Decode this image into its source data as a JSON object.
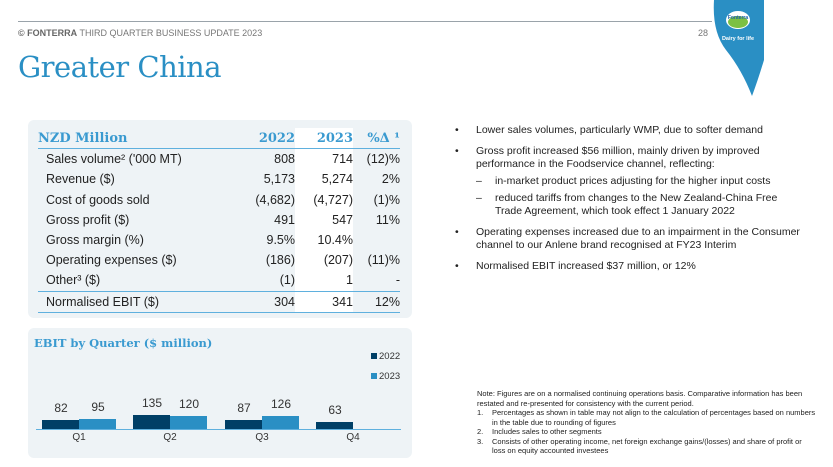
{
  "header": {
    "brand": "© FONTERRA",
    "doc_title": "THIRD QUARTER BUSINESS UPDATE 2023",
    "page_number": "28"
  },
  "logo": {
    "brand": "Fonterra",
    "tagline": "Dairy for life"
  },
  "page_title": "Greater China",
  "table": {
    "headers": [
      "NZD Million",
      "2022",
      "2023",
      "%Δ ¹"
    ],
    "rows": [
      {
        "label": "Sales volume² ('000 MT)",
        "y2022": "808",
        "y2023": "714",
        "pct": "(12)%"
      },
      {
        "label": "Revenue ($)",
        "y2022": "5,173",
        "y2023": "5,274",
        "pct": "2%"
      },
      {
        "label": "Cost of goods sold",
        "y2022": "(4,682)",
        "y2023": "(4,727)",
        "pct": "(1)%"
      },
      {
        "label": "Gross profit ($)",
        "y2022": "491",
        "y2023": "547",
        "pct": "11%"
      },
      {
        "label": "Gross margin (%)",
        "y2022": "9.5%",
        "y2023": "10.4%",
        "pct": ""
      },
      {
        "label": "Operating expenses ($)",
        "y2022": "(186)",
        "y2023": "(207)",
        "pct": "(11)%"
      },
      {
        "label": "Other³ ($)",
        "y2022": "(1)",
        "y2023": "1",
        "pct": "-"
      },
      {
        "label": "Normalised EBIT ($)",
        "y2022": "304",
        "y2023": "341",
        "pct": "12%"
      }
    ]
  },
  "chart_data": {
    "type": "bar",
    "title": "EBIT by Quarter ($ million)",
    "categories": [
      "Q1",
      "Q2",
      "Q3",
      "Q4"
    ],
    "series": [
      {
        "name": "2022",
        "values": [
          82,
          135,
          87,
          63
        ],
        "color": "#003f66"
      },
      {
        "name": "2023",
        "values": [
          95,
          120,
          126,
          null
        ],
        "color": "#2a8fc4"
      }
    ],
    "legend": "right"
  },
  "bullets": [
    {
      "text": "Lower sales volumes, particularly WMP, due to softer demand",
      "level": 1
    },
    {
      "text": "Gross profit increased $56 million, mainly driven by improved performance in the Foodservice channel, reflecting:",
      "level": 1
    },
    {
      "text": "in-market product prices adjusting for the higher input costs",
      "level": 2
    },
    {
      "text": "reduced tariffs from changes to the New Zealand-China Free Trade Agreement, which took effect 1 January 2022",
      "level": 2
    },
    {
      "text": "Operating expenses increased due to an impairment in the Consumer channel to our Anlene brand recognised at FY23 Interim",
      "level": 1
    },
    {
      "text": "Normalised EBIT increased $37 million, or 12%",
      "level": 1
    }
  ],
  "notes": {
    "intro": "Note: Figures are on a normalised continuing operations basis. Comparative information has been restated and re-presented for consistency with the current period.",
    "items": [
      {
        "num": "1.",
        "text": "Percentages as shown in table may not align to the calculation of percentages based on numbers in the table due to rounding of figures"
      },
      {
        "num": "2.",
        "text": "Includes sales to other segments"
      },
      {
        "num": "3.",
        "text": "Consists of other operating income, net foreign exchange gains/(losses) and share of profit or loss on equity accounted investees"
      }
    ]
  },
  "colors": {
    "accent": "#2a8fc4",
    "dark": "#003f66",
    "panel": "#eef3f6"
  }
}
